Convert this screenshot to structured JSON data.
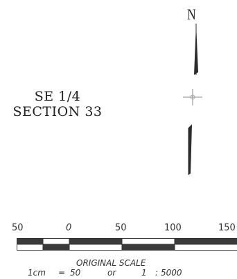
{
  "map_label": {
    "line1": "SE 1/4",
    "line2": "SECTION 33"
  },
  "north_arrow": {
    "letter": "N"
  },
  "scale": {
    "ticks": [
      "50",
      "0",
      "50",
      "100",
      "150"
    ],
    "title": "ORIGINAL SCALE",
    "equivalence": {
      "left": "1cm",
      "equals": "=",
      "value": "50",
      "or": "or",
      "ratio_left": "1",
      "colon": ":",
      "ratio_right": "5000"
    },
    "bar_fill_color": "#3a3a3a",
    "bar_alt_color": "#ffffff"
  }
}
